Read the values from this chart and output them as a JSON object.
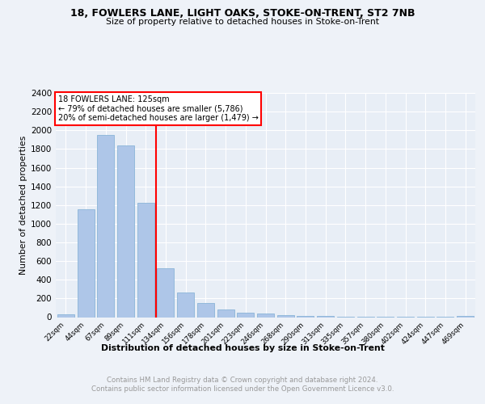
{
  "title1": "18, FOWLERS LANE, LIGHT OAKS, STOKE-ON-TRENT, ST2 7NB",
  "title2": "Size of property relative to detached houses in Stoke-on-Trent",
  "xlabel": "Distribution of detached houses by size in Stoke-on-Trent",
  "ylabel": "Number of detached properties",
  "categories": [
    "22sqm",
    "44sqm",
    "67sqm",
    "89sqm",
    "111sqm",
    "134sqm",
    "156sqm",
    "178sqm",
    "201sqm",
    "223sqm",
    "246sqm",
    "268sqm",
    "290sqm",
    "313sqm",
    "335sqm",
    "357sqm",
    "380sqm",
    "402sqm",
    "424sqm",
    "447sqm",
    "469sqm"
  ],
  "values": [
    30,
    1155,
    1950,
    1840,
    1225,
    525,
    265,
    148,
    85,
    50,
    42,
    25,
    14,
    10,
    8,
    6,
    5,
    4,
    3,
    2,
    12
  ],
  "bar_color": "#aec6e8",
  "bar_edge_color": "#8ab4d8",
  "vline_pos": 4.5,
  "annotation_line1": "18 FOWLERS LANE: 125sqm",
  "annotation_line2": "← 79% of detached houses are smaller (5,786)",
  "annotation_line3": "20% of semi-detached houses are larger (1,479) →",
  "ylim": [
    0,
    2400
  ],
  "yticks": [
    0,
    200,
    400,
    600,
    800,
    1000,
    1200,
    1400,
    1600,
    1800,
    2000,
    2200,
    2400
  ],
  "footer1": "Contains HM Land Registry data © Crown copyright and database right 2024.",
  "footer2": "Contains public sector information licensed under the Open Government Licence v3.0.",
  "bg_color": "#eef2f8",
  "plot_bg_color": "#e8eef6"
}
